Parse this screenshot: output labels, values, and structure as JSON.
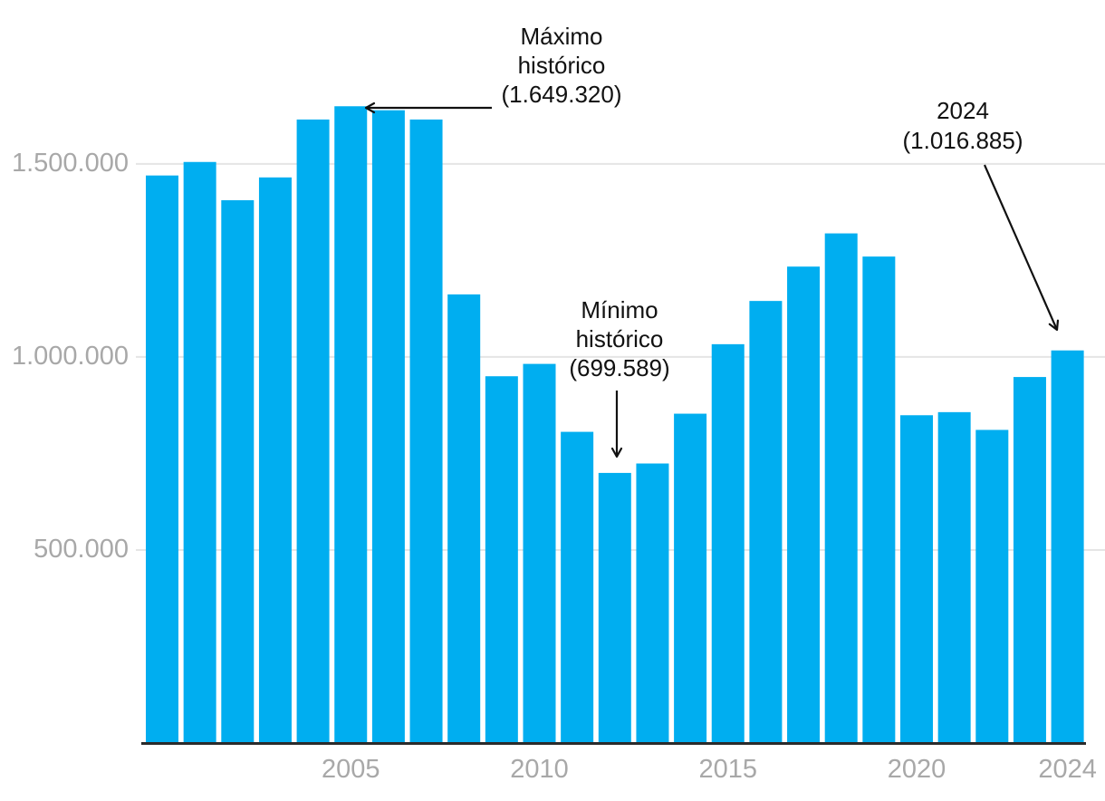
{
  "chart_data": {
    "type": "bar",
    "title": "",
    "xlabel": "",
    "ylabel": "",
    "categories": [
      "2000",
      "2001",
      "2002",
      "2003",
      "2004",
      "2005",
      "2006",
      "2007",
      "2008",
      "2009",
      "2010",
      "2011",
      "2012",
      "2013",
      "2014",
      "2015",
      "2016",
      "2017",
      "2018",
      "2019",
      "2020",
      "2021",
      "2022",
      "2023",
      "2024"
    ],
    "values": [
      1470000,
      1505000,
      1406000,
      1465000,
      1615000,
      1649320,
      1639000,
      1615000,
      1162000,
      950000,
      982000,
      806000,
      699589,
      724000,
      853000,
      1033000,
      1145000,
      1234000,
      1320000,
      1260000,
      849000,
      857000,
      811000,
      948000,
      1016885
    ],
    "x_tick_labels": [
      "2005",
      "2010",
      "2015",
      "2020",
      "2024"
    ],
    "y_tick_labels": [
      "500.000",
      "1.000.000",
      "1.500.000"
    ],
    "y_tick_values": [
      500000,
      1000000,
      1500000
    ],
    "ylim": [
      0,
      1750000
    ],
    "grid": "horizontal-only",
    "legend": "none",
    "annotations": [
      {
        "id": "max",
        "lines": [
          "Máximo",
          "histórico",
          "(1.649.320)"
        ],
        "target_year": "2005",
        "value": 1649320
      },
      {
        "id": "min",
        "lines": [
          "Mínimo",
          "histórico",
          "(699.589)"
        ],
        "target_year": "2012",
        "value": 699589
      },
      {
        "id": "y2024",
        "lines": [
          "2024",
          "(1.016.885)"
        ],
        "target_year": "2024",
        "value": 1016885
      }
    ],
    "colors": {
      "bar": "#00AEF0",
      "grid": "#e5e5e5",
      "axis": "#2b2b2b",
      "tick_text": "#a8a8a8",
      "annotation_text": "#111111",
      "background": "#ffffff"
    }
  }
}
